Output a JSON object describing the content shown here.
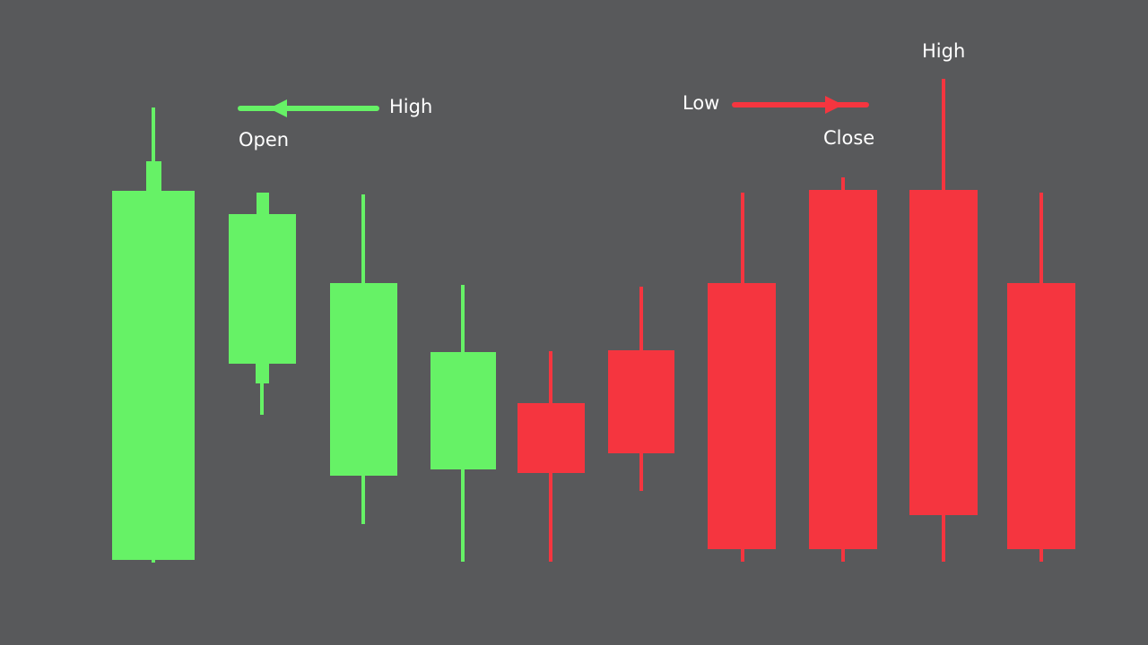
{
  "annotations": {
    "left_high": "High",
    "left_open": "Open",
    "right_low": "Low",
    "right_close": "Close",
    "top_high": "High"
  }
}
